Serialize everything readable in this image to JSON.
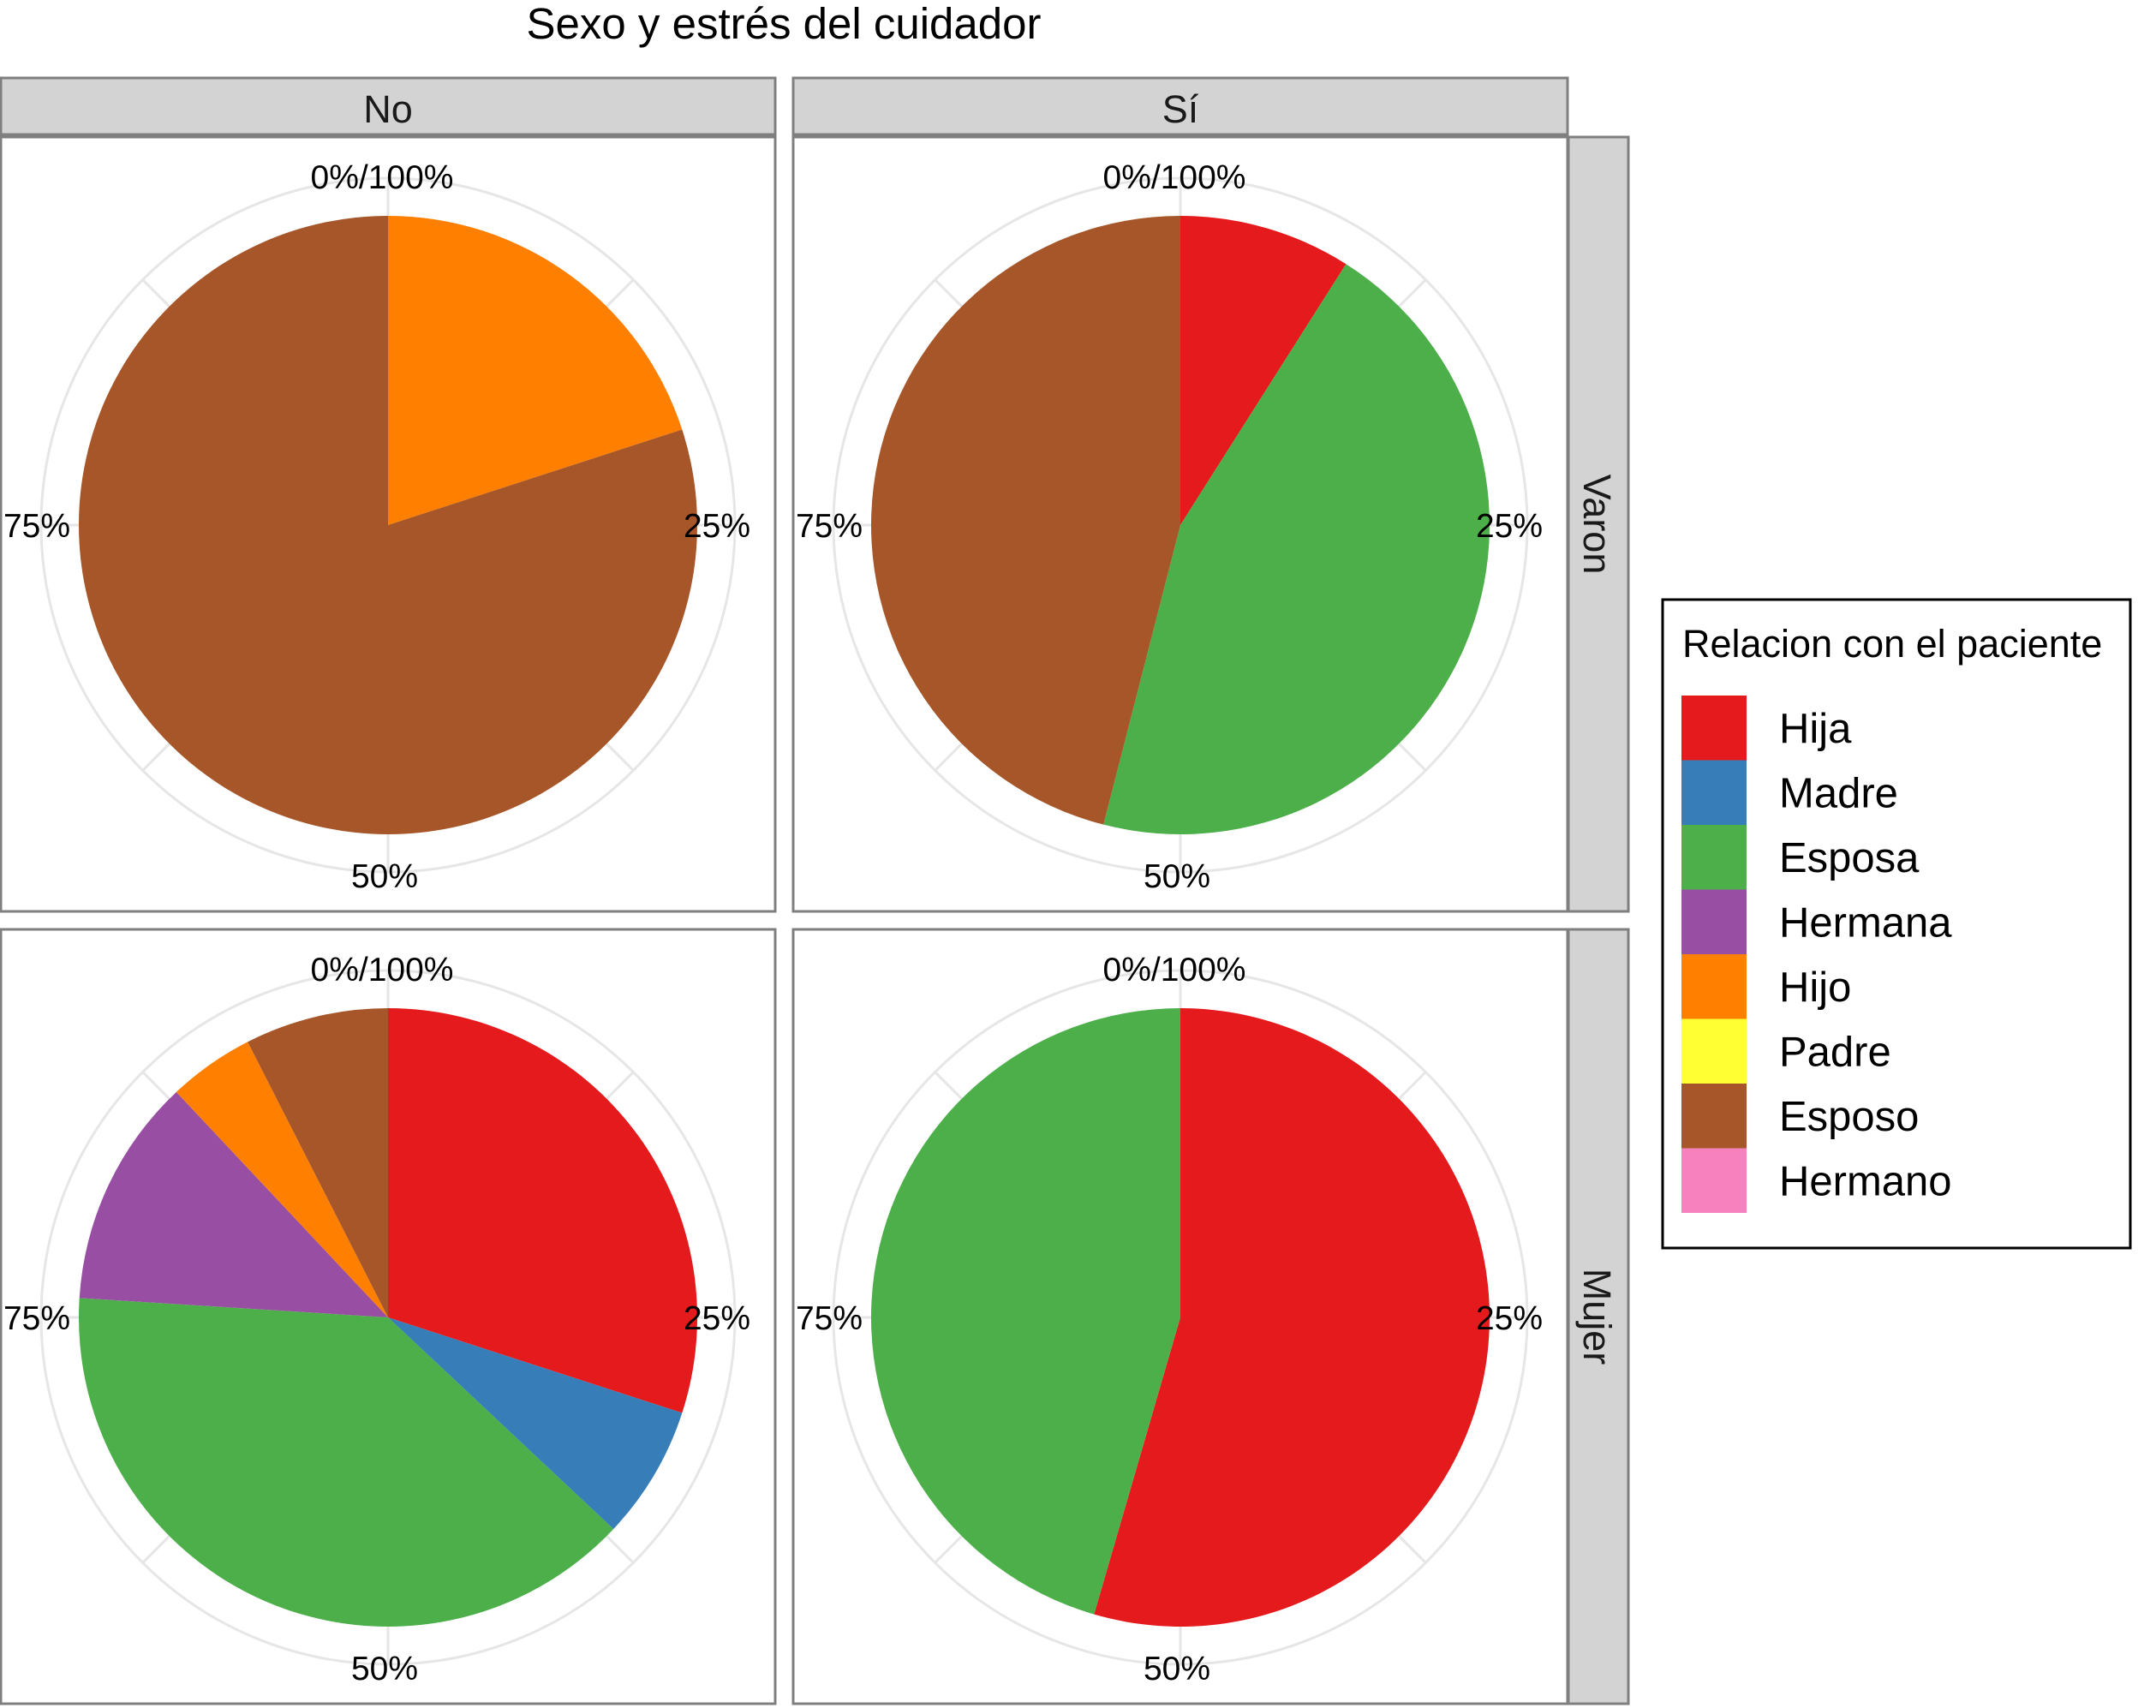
{
  "chart_data": {
    "type": "pie",
    "title": "Sexo y estrés del cuidador",
    "column_facets": [
      "No",
      "Sí"
    ],
    "row_facets": [
      "Varon",
      "Mujer"
    ],
    "angle_ticks": [
      "0%/100%",
      "25%",
      "50%",
      "75%"
    ],
    "legend": {
      "title": "Relacion con el paciente",
      "placement": "right",
      "items": [
        {
          "name": "Hija",
          "color": "#E41A1C"
        },
        {
          "name": "Madre",
          "color": "#377EB8"
        },
        {
          "name": "Esposa",
          "color": "#4DAF4A"
        },
        {
          "name": "Hermana",
          "color": "#984EA3"
        },
        {
          "name": "Hijo",
          "color": "#FF7F00"
        },
        {
          "name": "Padre",
          "color": "#FFFF33"
        },
        {
          "name": "Esposo",
          "color": "#A65628"
        },
        {
          "name": "Hermano",
          "color": "#F781BF"
        }
      ]
    },
    "panels": [
      {
        "col": "No",
        "row": "Varon",
        "slices": [
          {
            "name": "Hijo",
            "value": 0.2
          },
          {
            "name": "Esposo",
            "value": 0.8
          }
        ]
      },
      {
        "col": "Sí",
        "row": "Varon",
        "slices": [
          {
            "name": "Hija",
            "value": 0.09
          },
          {
            "name": "Esposa",
            "value": 0.45
          },
          {
            "name": "Esposo",
            "value": 0.46
          }
        ]
      },
      {
        "col": "No",
        "row": "Mujer",
        "slices": [
          {
            "name": "Hija",
            "value": 0.3
          },
          {
            "name": "Madre",
            "value": 0.07
          },
          {
            "name": "Esposa",
            "value": 0.39
          },
          {
            "name": "Hermana",
            "value": 0.12
          },
          {
            "name": "Hijo",
            "value": 0.045
          },
          {
            "name": "Esposo",
            "value": 0.075
          }
        ]
      },
      {
        "col": "Sí",
        "row": "Mujer",
        "slices": [
          {
            "name": "Hija",
            "value": 0.545
          },
          {
            "name": "Esposa",
            "value": 0.455
          }
        ]
      }
    ]
  }
}
